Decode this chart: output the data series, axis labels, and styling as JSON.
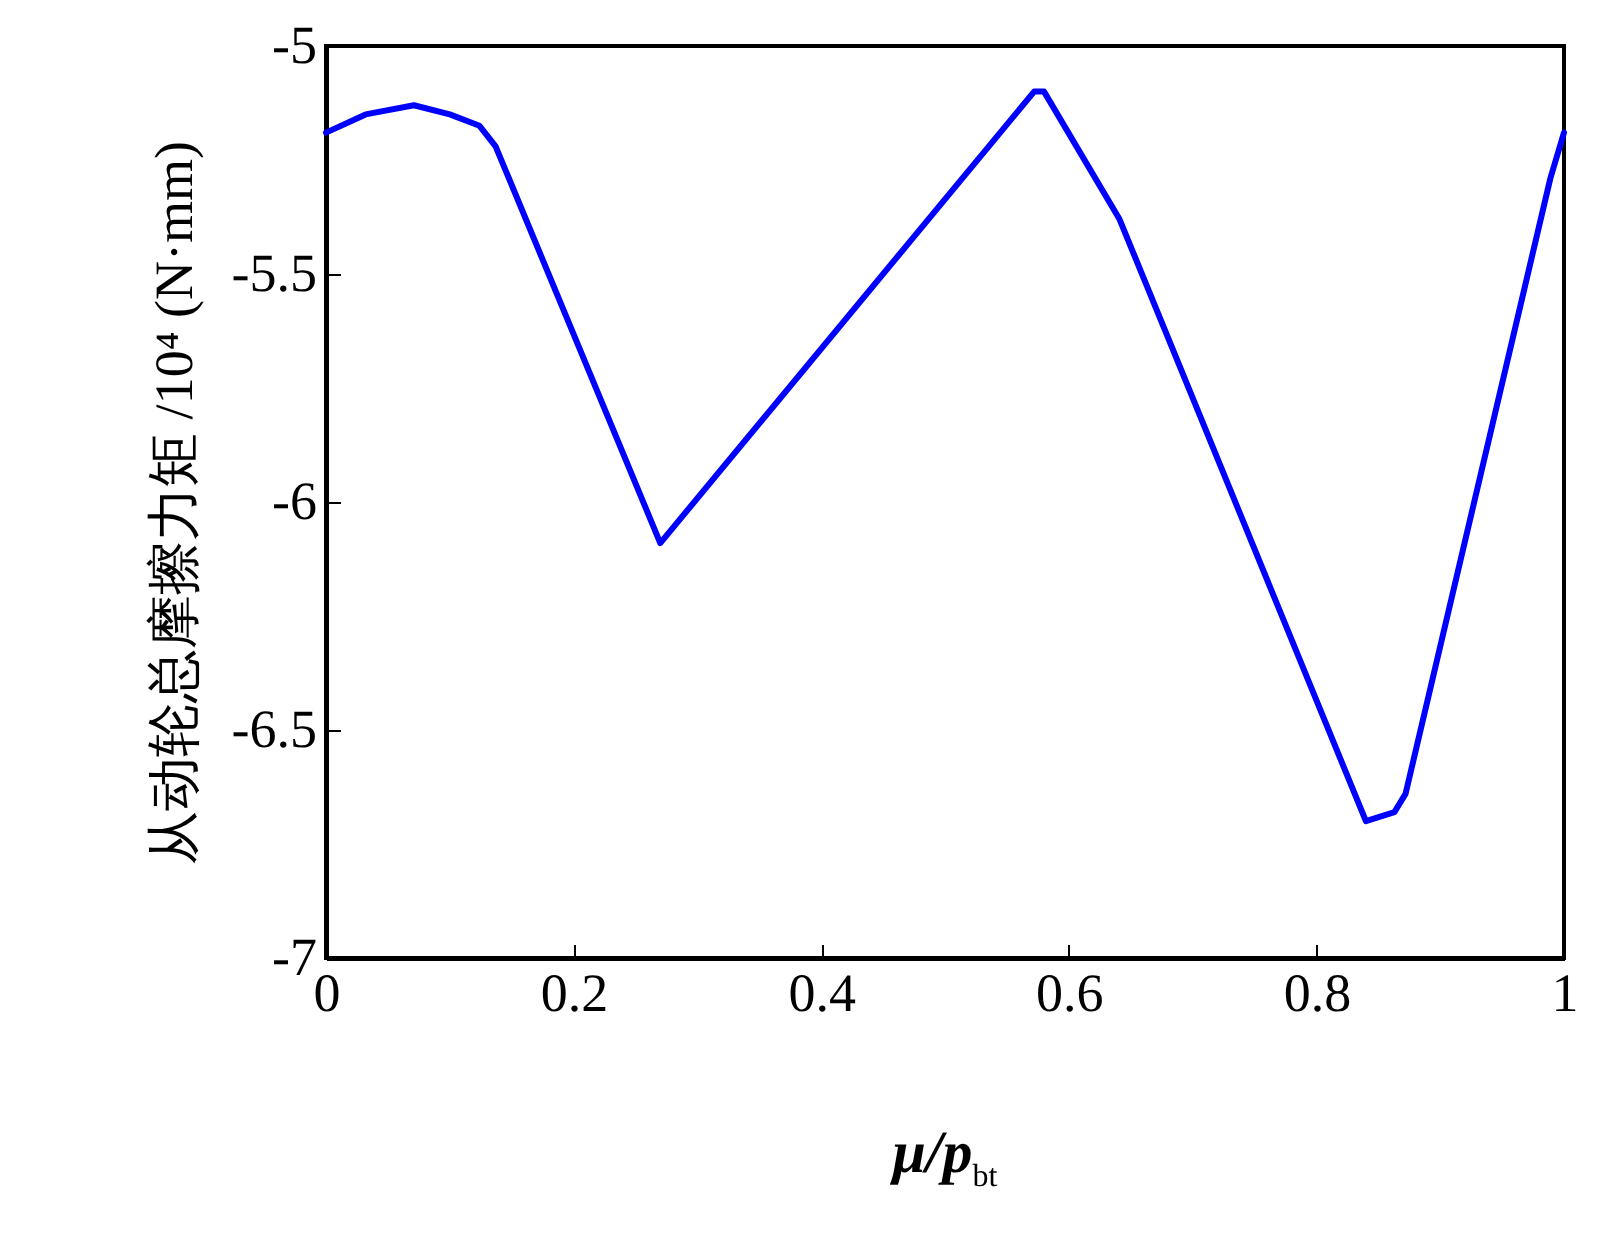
{
  "chart_data": {
    "type": "line",
    "xlabel": "μ/p$_{bt}$",
    "ylabel": "从动轮总摩擦力矩 /10⁴ (N·mm)",
    "x": [
      0,
      0.032,
      0.071,
      0.1,
      0.124,
      0.137,
      0.27,
      0.572,
      0.58,
      0.641,
      0.84,
      0.863,
      0.872,
      0.989,
      1
    ],
    "series": [
      {
        "color": "#0000ff",
        "values": [
          -5.19,
          -5.15,
          -5.13,
          -5.15,
          -5.175,
          -5.22,
          -6.09,
          -5.1,
          -5.1,
          -5.38,
          -6.7,
          -6.68,
          -6.64,
          -5.29,
          -5.19
        ]
      }
    ],
    "xlim": [
      0,
      1
    ],
    "xticks": [
      0,
      0.2,
      0.4,
      0.6,
      0.8,
      1
    ],
    "ylim": [
      -7,
      -5
    ],
    "yticks": [
      -7,
      -6.5,
      -6,
      -5.5,
      -5
    ],
    "grid": false,
    "marker": "none",
    "line_style": "solid"
  }
}
